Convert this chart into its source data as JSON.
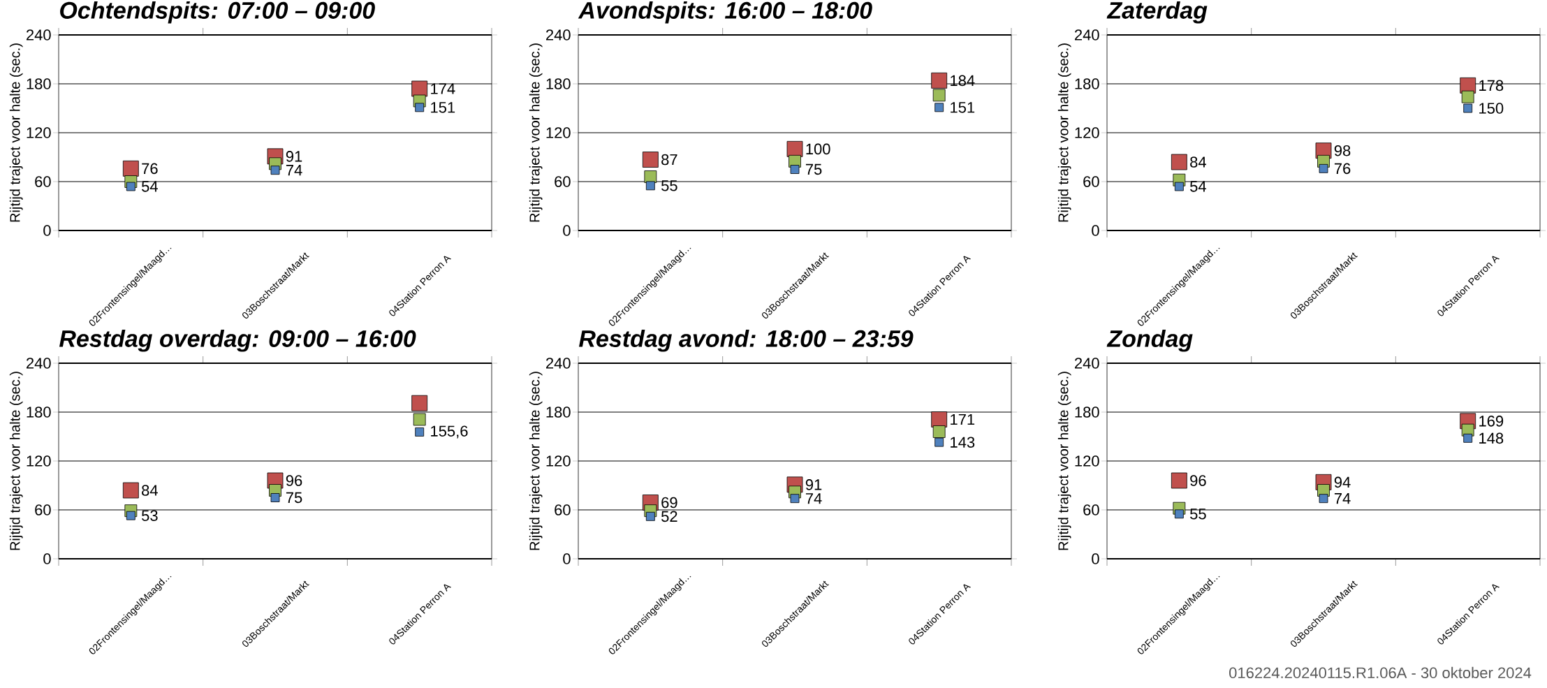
{
  "chart_data": [
    {
      "type": "scatter",
      "title": "Ochtendspits: 07:00 – 09:00",
      "marker": "square",
      "ylabel": "Rijtijd traject voor halte (sec.)",
      "categories": [
        "02Frontensingel/Maagd…",
        "03Boschstraat/Markt",
        "04Station Perron A"
      ],
      "ylim": [
        0,
        240
      ],
      "yticks": [
        0,
        60,
        120,
        180,
        240
      ],
      "grid": "y",
      "series": [
        {
          "color": "#c0504d",
          "values": [
            76,
            91,
            174
          ],
          "value_labels": [
            "76",
            "91",
            "174"
          ]
        },
        {
          "color": "#9bbb59",
          "values": [
            60,
            82,
            159
          ]
        },
        {
          "color": "#4f81bd",
          "values": [
            54,
            74,
            151
          ],
          "value_labels": [
            "54",
            "74",
            "151"
          ]
        }
      ]
    },
    {
      "type": "scatter",
      "title": "Avondspits: 16:00 – 18:00",
      "marker": "square",
      "ylabel": "Rijtijd traject voor halte (sec.)",
      "categories": [
        "02Frontensingel/Maagd…",
        "03Boschstraat/Markt",
        "04Station Perron A"
      ],
      "ylim": [
        0,
        240
      ],
      "yticks": [
        0,
        60,
        120,
        180,
        240
      ],
      "grid": "y",
      "series": [
        {
          "color": "#c0504d",
          "values": [
            87,
            100,
            184
          ],
          "value_labels": [
            "87",
            "100",
            "184"
          ]
        },
        {
          "color": "#9bbb59",
          "values": [
            66,
            85,
            166
          ]
        },
        {
          "color": "#4f81bd",
          "values": [
            55,
            75,
            151
          ],
          "value_labels": [
            "55",
            "75",
            "151"
          ]
        }
      ]
    },
    {
      "type": "scatter",
      "title": "Zaterdag",
      "marker": "square",
      "ylabel": "Rijtijd traject voor halte (sec.)",
      "categories": [
        "02Frontensingel/Maagd…",
        "03Boschstraat/Markt",
        "04Station Perron A"
      ],
      "ylim": [
        0,
        240
      ],
      "yticks": [
        0,
        60,
        120,
        180,
        240
      ],
      "grid": "y",
      "series": [
        {
          "color": "#c0504d",
          "values": [
            84,
            98,
            178
          ],
          "value_labels": [
            "84",
            "98",
            "178"
          ]
        },
        {
          "color": "#9bbb59",
          "values": [
            62,
            85,
            164
          ]
        },
        {
          "color": "#4f81bd",
          "values": [
            54,
            76,
            150
          ],
          "value_labels": [
            "54",
            "76",
            "150"
          ]
        }
      ]
    },
    {
      "type": "scatter",
      "title": "Restdag overdag: 09:00 – 16:00",
      "marker": "square",
      "ylabel": "Rijtijd traject voor halte (sec.)",
      "categories": [
        "02Frontensingel/Maagd…",
        "03Boschstraat/Markt",
        "04Station Perron A"
      ],
      "ylim": [
        0,
        240
      ],
      "yticks": [
        0,
        60,
        120,
        180,
        240
      ],
      "grid": "y",
      "series": [
        {
          "color": "#c0504d",
          "values": [
            84,
            96,
            191
          ],
          "value_labels": [
            "84",
            "96",
            null
          ]
        },
        {
          "color": "#9bbb59",
          "values": [
            59,
            84,
            171
          ]
        },
        {
          "color": "#4f81bd",
          "values": [
            53,
            75,
            155.6
          ],
          "value_labels": [
            "53",
            "75",
            "155,6"
          ]
        }
      ]
    },
    {
      "type": "scatter",
      "title": "Restdag avond: 18:00 – 23:59",
      "marker": "square",
      "ylabel": "Rijtijd traject voor halte (sec.)",
      "categories": [
        "02Frontensingel/Maagd…",
        "03Boschstraat/Markt",
        "04Station Perron A"
      ],
      "ylim": [
        0,
        240
      ],
      "yticks": [
        0,
        60,
        120,
        180,
        240
      ],
      "grid": "y",
      "series": [
        {
          "color": "#c0504d",
          "values": [
            69,
            91,
            171
          ],
          "value_labels": [
            "69",
            "91",
            "171"
          ]
        },
        {
          "color": "#9bbb59",
          "values": [
            59,
            82,
            156
          ]
        },
        {
          "color": "#4f81bd",
          "values": [
            52,
            74,
            143
          ],
          "value_labels": [
            "52",
            "74",
            "143"
          ]
        }
      ]
    },
    {
      "type": "scatter",
      "title": "Zondag",
      "marker": "square",
      "ylabel": "Rijtijd traject voor halte (sec.)",
      "categories": [
        "02Frontensingel/Maagd…",
        "03Boschstraat/Markt",
        "04Station Perron A"
      ],
      "ylim": [
        0,
        240
      ],
      "yticks": [
        0,
        60,
        120,
        180,
        240
      ],
      "grid": "y",
      "annotations": [
        "016224.20240115.R1.06A  -  30 oktober 2024"
      ],
      "series": [
        {
          "color": "#c0504d",
          "values": [
            96,
            94,
            169
          ],
          "value_labels": [
            "96",
            "94",
            "169"
          ]
        },
        {
          "color": "#9bbb59",
          "values": [
            62,
            84,
            158
          ]
        },
        {
          "color": "#4f81bd",
          "values": [
            55,
            74,
            148
          ],
          "value_labels": [
            "55",
            "74",
            "148"
          ]
        }
      ]
    }
  ]
}
